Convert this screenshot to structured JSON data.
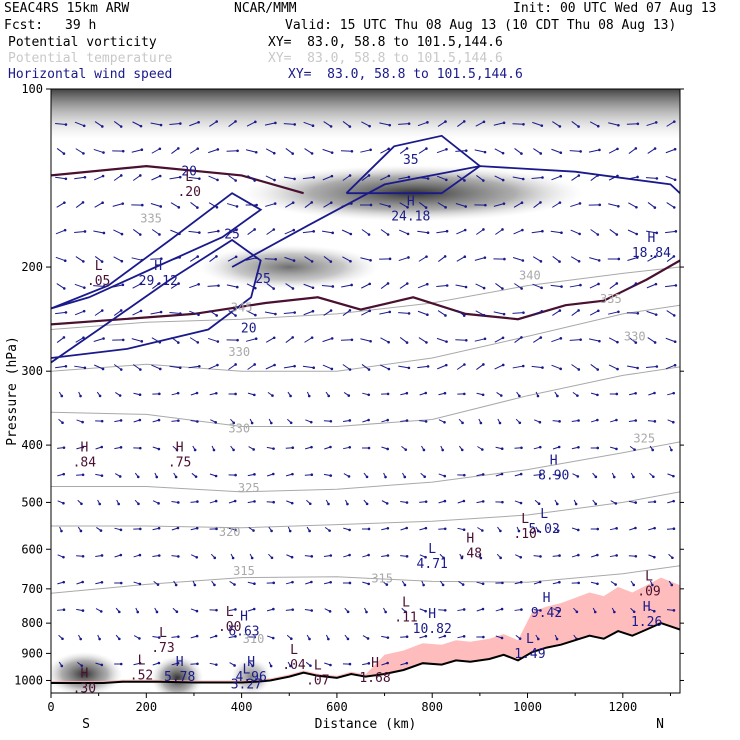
{
  "header": {
    "model": "SEAC4RS 15km ARW",
    "org": "NCAR/MMM",
    "init": "Init: 00 UTC Wed 07 Aug 13",
    "fcst_label": "Fcst:",
    "fcst_value": "39 h",
    "valid": "Valid: 15 UTC Thu 08 Aug 13 (10 CDT Thu 08 Aug 13)",
    "fields": [
      {
        "name": "Potential vorticity",
        "xy": "XY=  83.0, 58.8 to 101.5,144.6",
        "color": "#000000"
      },
      {
        "name": "Potential temperature",
        "xy": "XY=  83.0, 58.8 to 101.5,144.6",
        "color": "#c8c8c8"
      },
      {
        "name": "Horizontal wind speed",
        "xy": "XY=  83.0, 58.8 to 101.5,144.6",
        "color": "#1a1a8c"
      }
    ]
  },
  "colors": {
    "theta": "#a9a9a9",
    "pv": "#4a1030",
    "wind": "#1a1a8c",
    "terrain_shade": "#ffb0b0",
    "grey": "#555555"
  },
  "chart_data": {
    "type": "cross-section",
    "xlabel": "Distance (km)",
    "ylabel": "Pressure (hPa)",
    "xlim": [
      0,
      1320
    ],
    "ylim": [
      1050,
      100
    ],
    "y_scale": "log",
    "x_ticks": [
      "0",
      "200",
      "400",
      "600",
      "800",
      "1000",
      "1200"
    ],
    "y_ticks": [
      "100",
      "200",
      "300",
      "400",
      "500",
      "600",
      "700",
      "800",
      "900",
      "1000"
    ],
    "endpoint_left": "S",
    "endpoint_right": "N",
    "theta_labels": [
      {
        "text": "335",
        "x": 210,
        "p": 168
      },
      {
        "text": "330",
        "x": 395,
        "p": 283
      },
      {
        "text": "345",
        "x": 400,
        "p": 238
      },
      {
        "text": "330",
        "x": 395,
        "p": 381
      },
      {
        "text": "325",
        "x": 415,
        "p": 480
      },
      {
        "text": "320",
        "x": 375,
        "p": 570
      },
      {
        "text": "315",
        "x": 405,
        "p": 663
      },
      {
        "text": "315",
        "x": 695,
        "p": 683
      },
      {
        "text": "310",
        "x": 425,
        "p": 865
      },
      {
        "text": "330",
        "x": 1225,
        "p": 266
      },
      {
        "text": "325",
        "x": 1245,
        "p": 396
      },
      {
        "text": "335",
        "x": 1175,
        "p": 230
      },
      {
        "text": "340",
        "x": 1005,
        "p": 210
      }
    ],
    "theta_lines": [
      {
        "value": 315,
        "x": [
          0,
          200,
          400,
          600,
          800,
          1000,
          1200,
          1320
        ],
        "p": [
          712,
          688,
          670,
          668,
          680,
          682,
          660,
          640
        ]
      },
      {
        "value": 320,
        "x": [
          0,
          200,
          400,
          600,
          800,
          1000,
          1200,
          1320
        ],
        "p": [
          548,
          548,
          552,
          545,
          538,
          525,
          500,
          480
        ]
      },
      {
        "value": 325,
        "x": [
          0,
          200,
          400,
          600,
          800,
          1000,
          1200,
          1320
        ],
        "p": [
          470,
          470,
          480,
          475,
          462,
          440,
          412,
          395
        ]
      },
      {
        "value": 330,
        "x": [
          0,
          200,
          400,
          600,
          800,
          1000,
          1200,
          1320
        ],
        "p": [
          352,
          355,
          372,
          372,
          362,
          330,
          305,
          295
        ]
      },
      {
        "value": 335,
        "x": [
          0,
          200,
          400,
          600,
          800,
          1000,
          1200,
          1320
        ],
        "p": [
          300,
          292,
          300,
          300,
          285,
          262,
          240,
          232
        ]
      },
      {
        "value": 345,
        "x": [
          0,
          200,
          400,
          600,
          800,
          1000,
          1200,
          1320
        ],
        "p": [
          255,
          248,
          245,
          240,
          230,
          215,
          205,
          200
        ]
      }
    ],
    "wind_speed_labels": [
      {
        "text": "20",
        "x": 290,
        "p": 140
      },
      {
        "text": "25",
        "x": 380,
        "p": 179
      },
      {
        "text": "25",
        "x": 445,
        "p": 213
      },
      {
        "text": "20",
        "x": 415,
        "p": 258
      },
      {
        "text": "35",
        "x": 755,
        "p": 134
      }
    ],
    "extrema": [
      {
        "type": "H",
        "value": "29.12",
        "x": 225,
        "p": 212,
        "color": "wind"
      },
      {
        "type": "H",
        "value": "24.18",
        "x": 755,
        "p": 165,
        "color": "wind"
      },
      {
        "type": "H",
        "value": "18.84",
        "x": 1260,
        "p": 190,
        "color": "wind"
      },
      {
        "type": "H",
        "value": "8.90",
        "x": 1055,
        "p": 452,
        "color": "wind"
      },
      {
        "type": "L",
        "value": "5.02",
        "x": 1035,
        "p": 557,
        "color": "wind"
      },
      {
        "type": "L",
        "value": "4.71",
        "x": 800,
        "p": 638,
        "color": "wind"
      },
      {
        "type": "H",
        "value": "9.42",
        "x": 1040,
        "p": 772,
        "color": "wind"
      },
      {
        "type": "H",
        "value": "10.82",
        "x": 800,
        "p": 822,
        "color": "wind"
      },
      {
        "type": "H",
        "value": "6.63",
        "x": 405,
        "p": 830,
        "color": "wind"
      },
      {
        "type": "H",
        "value": "5.78",
        "x": 270,
        "p": 990,
        "color": "wind"
      },
      {
        "type": "H",
        "value": "4.96",
        "x": 420,
        "p": 990,
        "color": "wind"
      },
      {
        "type": "L",
        "value": "3.27",
        "x": 410,
        "p": 1020,
        "color": "wind"
      },
      {
        "type": "L",
        "value": "1.49",
        "x": 1005,
        "p": 905,
        "color": "wind"
      },
      {
        "type": "H",
        "value": "1.26",
        "x": 1250,
        "p": 800,
        "color": "wind"
      },
      {
        "type": "L",
        "value": ".05",
        "x": 100,
        "p": 212,
        "color": "pv"
      },
      {
        "type": "L",
        "value": ".20",
        "x": 290,
        "p": 150,
        "color": "pv"
      },
      {
        "type": "H",
        "value": ".84",
        "x": 70,
        "p": 430,
        "color": "pv"
      },
      {
        "type": "H",
        "value": ".75",
        "x": 270,
        "p": 430,
        "color": "pv"
      },
      {
        "type": "H",
        "value": ".48",
        "x": 880,
        "p": 612,
        "color": "pv"
      },
      {
        "type": "L",
        "value": ".10",
        "x": 995,
        "p": 568,
        "color": "pv"
      },
      {
        "type": "L",
        "value": ".09",
        "x": 1255,
        "p": 710,
        "color": "pv"
      },
      {
        "type": "L",
        "value": ".11",
        "x": 745,
        "p": 785,
        "color": "pv"
      },
      {
        "type": "L",
        "value": ".00",
        "x": 375,
        "p": 815,
        "color": "pv"
      },
      {
        "type": "L",
        "value": ".73",
        "x": 235,
        "p": 885,
        "color": "pv"
      },
      {
        "type": "L",
        "value": ".04",
        "x": 510,
        "p": 945,
        "color": "pv"
      },
      {
        "type": "L",
        "value": ".52",
        "x": 190,
        "p": 985,
        "color": "pv"
      },
      {
        "type": "H",
        "value": ".30",
        "x": 70,
        "p": 1035,
        "color": "pv"
      },
      {
        "type": "H",
        "value": "1.68",
        "x": 680,
        "p": 995,
        "color": "pv"
      },
      {
        "type": "L",
        "value": ".07",
        "x": 560,
        "p": 1005,
        "color": "pv"
      }
    ],
    "terrain": {
      "x": [
        0,
        60,
        110,
        150,
        170,
        200,
        230,
        300,
        360,
        400,
        430,
        460,
        500,
        530,
        560,
        600,
        630,
        660,
        700,
        740,
        780,
        820,
        850,
        880,
        920,
        950,
        980,
        1010,
        1040,
        1070,
        1100,
        1130,
        1160,
        1190,
        1220,
        1250,
        1280,
        1300,
        1320
      ],
      "p": [
        1010,
        1010,
        1010,
        1005,
        1005,
        1005,
        1005,
        1008,
        1008,
        1008,
        1005,
        1000,
        985,
        970,
        982,
        990,
        975,
        985,
        975,
        960,
        935,
        940,
        925,
        930,
        920,
        905,
        925,
        895,
        880,
        870,
        855,
        840,
        850,
        825,
        840,
        820,
        800,
        810,
        820
      ]
    }
  }
}
